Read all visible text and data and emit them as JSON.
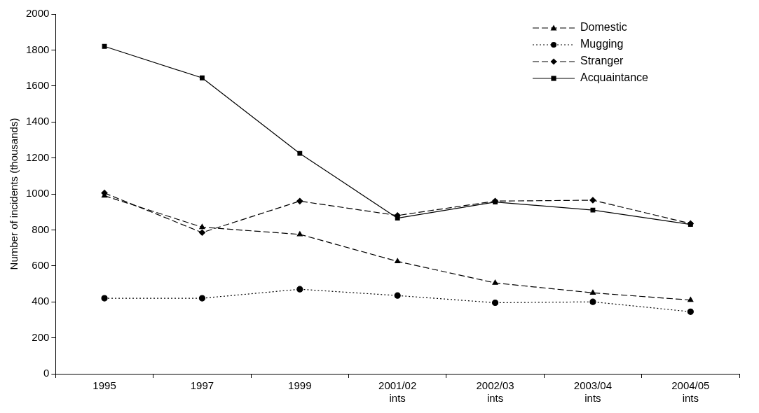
{
  "chart_data": {
    "type": "line",
    "ylabel": "Number of incidents (thousands)",
    "categories": [
      "1995",
      "1997",
      "1999",
      "2001/02 ints",
      "2002/03 ints",
      "2003/04 ints",
      "2004/05 ints"
    ],
    "ylim": [
      0,
      2000
    ],
    "yticks": [
      0,
      200,
      400,
      600,
      800,
      1000,
      1200,
      1400,
      1600,
      1800,
      2000
    ],
    "grid": false,
    "legend": "top right",
    "series": [
      {
        "name": "Domestic",
        "color": "#000000",
        "marker": "triangle",
        "line_style": "dashed",
        "values": [
          990,
          815,
          775,
          625,
          505,
          450,
          410
        ]
      },
      {
        "name": "Mugging",
        "color": "#000000",
        "marker": "circle",
        "line_style": "dotted",
        "values": [
          420,
          420,
          470,
          435,
          395,
          400,
          345
        ]
      },
      {
        "name": "Stranger",
        "color": "#000000",
        "marker": "diamond",
        "line_style": "dashed",
        "values": [
          1005,
          785,
          960,
          880,
          960,
          965,
          835
        ]
      },
      {
        "name": "Acquaintance",
        "color": "#000000",
        "marker": "square",
        "line_style": "solid",
        "values": [
          1820,
          1645,
          1225,
          865,
          955,
          910,
          830
        ]
      }
    ]
  }
}
